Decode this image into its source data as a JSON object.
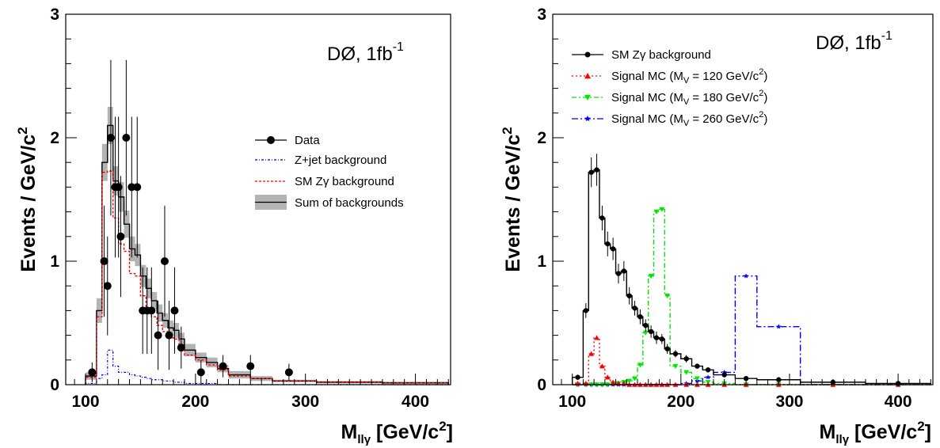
{
  "chart_data": [
    {
      "type": "histogram",
      "annotation": {
        "main": "DØ, 1fb",
        "sup": "-1"
      },
      "xlabel": {
        "main": "M",
        "sub": "llγ",
        "rest": " [GeV/c",
        "sup": "2",
        "end": "]"
      },
      "ylabel": {
        "main": "Events / GeV/c",
        "sup": "2"
      },
      "xlim": [
        82,
        432
      ],
      "ylim": [
        0,
        3
      ],
      "xticks": [
        100,
        200,
        300,
        400
      ],
      "yticks": [
        0,
        1,
        2,
        3
      ],
      "bin_edges": [
        100,
        110,
        115,
        120,
        125,
        130,
        135,
        140,
        145,
        150,
        155,
        160,
        165,
        170,
        175,
        180,
        185,
        190,
        200,
        210,
        220,
        230,
        250,
        270,
        310,
        370,
        430
      ],
      "legend": {
        "data": "Data",
        "zjet": "Z+jet background",
        "zg": "SM Zγ background",
        "sum": "Sum of backgrounds"
      },
      "series": [
        {
          "key": "sum",
          "color": "#000000",
          "band_color": "#b4b4b4",
          "values": [
            0.07,
            0.6,
            1.8,
            2.1,
            1.65,
            1.52,
            1.3,
            1.1,
            1.05,
            0.88,
            0.78,
            0.68,
            0.58,
            0.52,
            0.46,
            0.44,
            0.37,
            0.28,
            0.22,
            0.18,
            0.13,
            0.08,
            0.05,
            0.03,
            0.02,
            0.015
          ],
          "errors": [
            0.03,
            0.1,
            0.15,
            0.15,
            0.12,
            0.12,
            0.11,
            0.1,
            0.09,
            0.09,
            0.08,
            0.07,
            0.07,
            0.06,
            0.06,
            0.06,
            0.05,
            0.05,
            0.04,
            0.04,
            0.03,
            0.03,
            0.02,
            0.01,
            0.01,
            0.01
          ]
        },
        {
          "key": "zg",
          "color": "#ff0000",
          "values": [
            0.06,
            0.55,
            1.72,
            1.73,
            1.35,
            1.14,
            1.08,
            0.9,
            0.88,
            0.72,
            0.62,
            0.55,
            0.48,
            0.43,
            0.38,
            0.37,
            0.31,
            0.24,
            0.2,
            0.16,
            0.12,
            0.07,
            0.05,
            0.03,
            0.02,
            0.015
          ]
        },
        {
          "key": "zjet",
          "color": "#0000ff",
          "values": [
            0.01,
            0.05,
            0.08,
            0.28,
            0.15,
            0.1,
            0.1,
            0.08,
            0.07,
            0.06,
            0.05,
            0.04,
            0.04,
            0.03,
            0.03,
            0.02,
            0.02,
            0.01,
            0.01,
            0.01,
            0.0,
            0.0,
            0.0,
            0.0,
            0.0,
            0.0
          ]
        }
      ],
      "data_points": [
        {
          "x": 106,
          "y": 0.1,
          "err": 0.08
        },
        {
          "x": 117,
          "y": 1.0,
          "err": 0.45
        },
        {
          "x": 120,
          "y": 0.8,
          "err": 0.4
        },
        {
          "x": 123,
          "y": 2.0,
          "err": 0.63
        },
        {
          "x": 127,
          "y": 1.6,
          "err": 0.57
        },
        {
          "x": 130,
          "y": 1.6,
          "err": 0.57
        },
        {
          "x": 132,
          "y": 1.2,
          "err": 0.49
        },
        {
          "x": 137,
          "y": 2.0,
          "err": 0.63
        },
        {
          "x": 142,
          "y": 1.6,
          "err": 0.57
        },
        {
          "x": 147,
          "y": 1.6,
          "err": 0.57
        },
        {
          "x": 152,
          "y": 0.6,
          "err": 0.35
        },
        {
          "x": 156,
          "y": 0.6,
          "err": 0.35
        },
        {
          "x": 160,
          "y": 0.6,
          "err": 0.35
        },
        {
          "x": 166,
          "y": 0.4,
          "err": 0.28
        },
        {
          "x": 172,
          "y": 1.0,
          "err": 0.45
        },
        {
          "x": 176,
          "y": 0.4,
          "err": 0.28
        },
        {
          "x": 181,
          "y": 0.6,
          "err": 0.35
        },
        {
          "x": 187,
          "y": 0.3,
          "err": 0.17
        },
        {
          "x": 205,
          "y": 0.1,
          "err": 0.1
        },
        {
          "x": 225,
          "y": 0.15,
          "err": 0.09
        },
        {
          "x": 250,
          "y": 0.15,
          "err": 0.09
        },
        {
          "x": 285,
          "y": 0.1,
          "err": 0.07
        }
      ]
    },
    {
      "type": "histogram",
      "annotation": {
        "main": "DØ, 1fb",
        "sup": "-1"
      },
      "xlabel": {
        "main": "M",
        "sub": "llγ",
        "rest": " [GeV/c",
        "sup": "2",
        "end": "]"
      },
      "ylabel": {
        "main": "Events / GeV/c",
        "sup": "2"
      },
      "xlim": [
        82,
        432
      ],
      "ylim": [
        0,
        3
      ],
      "xticks": [
        100,
        200,
        300,
        400
      ],
      "yticks": [
        0,
        1,
        2,
        3
      ],
      "bin_edges": [
        100,
        110,
        115,
        120,
        125,
        130,
        135,
        140,
        145,
        150,
        155,
        160,
        165,
        170,
        175,
        180,
        185,
        190,
        200,
        210,
        220,
        230,
        250,
        270,
        310,
        370,
        430
      ],
      "legend": [
        {
          "text": "SM Zγ background",
          "sub": "",
          "after": "",
          "sup": "",
          "end": "",
          "color": "#000000",
          "dash": "",
          "marker": "circle"
        },
        {
          "text": "Signal MC (M",
          "sub": "V",
          "after": " = 120 GeV/c",
          "sup": "2",
          "end": ")",
          "color": "#ff0000",
          "dash": "2,3",
          "marker": "triangle-up"
        },
        {
          "text": "Signal MC (M",
          "sub": "V",
          "after": " = 180 GeV/c",
          "sup": "2",
          "end": ")",
          "color": "#00e600",
          "dash": "6,3,2,3",
          "marker": "triangle-down"
        },
        {
          "text": "Signal MC (M",
          "sub": "V",
          "after": " = 260 GeV/c",
          "sup": "2",
          "end": ")",
          "color": "#0000ff",
          "dash": "8,3,2,3",
          "marker": "star"
        }
      ],
      "series": [
        {
          "name": "SM Zγ background",
          "color": "#000000",
          "marker": "circle",
          "values": [
            0.06,
            0.6,
            1.72,
            1.74,
            1.35,
            1.14,
            1.1,
            0.9,
            0.92,
            0.72,
            0.62,
            0.55,
            0.48,
            0.43,
            0.38,
            0.37,
            0.29,
            0.25,
            0.21,
            0.15,
            0.12,
            0.08,
            0.05,
            0.04,
            0.02,
            0.01
          ],
          "errors": [
            0.02,
            0.06,
            0.12,
            0.13,
            0.1,
            0.1,
            0.09,
            0.08,
            0.08,
            0.07,
            0.06,
            0.06,
            0.05,
            0.05,
            0.05,
            0.04,
            0.04,
            0.03,
            0.03,
            0.02,
            0.02,
            0.02,
            0.01,
            0.01,
            0.01,
            0.01
          ]
        },
        {
          "name": "Signal MC (MV = 120 GeV/c2)",
          "color": "#ff0000",
          "marker": "triangle-up",
          "values": [
            0.01,
            0.01,
            0.25,
            0.38,
            0.15,
            0.06,
            0.02,
            0.01,
            0.01,
            0.0,
            0.0,
            0.0,
            0.0,
            0.0,
            0.0,
            0.0,
            0.0,
            0.0,
            0.0,
            0.0,
            0.0,
            0.0,
            0.0,
            0.0,
            0.0,
            0.0
          ]
        },
        {
          "name": "Signal MC (MV = 180 GeV/c2)",
          "color": "#00e600",
          "marker": "triangle-down",
          "values": [
            0.0,
            0.0,
            0.0,
            0.0,
            0.0,
            0.0,
            0.01,
            0.01,
            0.02,
            0.03,
            0.05,
            0.16,
            0.42,
            0.88,
            1.4,
            1.42,
            0.72,
            0.15,
            0.1,
            0.05,
            0.02,
            0.01,
            0.0,
            0.0,
            0.0,
            0.0
          ]
        },
        {
          "name": "Signal MC (MV = 260 GeV/c2)",
          "color": "#0000ff",
          "marker": "star",
          "values": [
            0.0,
            0.0,
            0.0,
            0.0,
            0.0,
            0.0,
            0.0,
            0.0,
            0.0,
            0.0,
            0.0,
            0.0,
            0.0,
            0.0,
            0.0,
            0.0,
            0.0,
            0.0,
            0.01,
            0.03,
            0.06,
            0.1,
            0.88,
            0.47,
            0.0,
            0.0
          ]
        }
      ]
    }
  ]
}
